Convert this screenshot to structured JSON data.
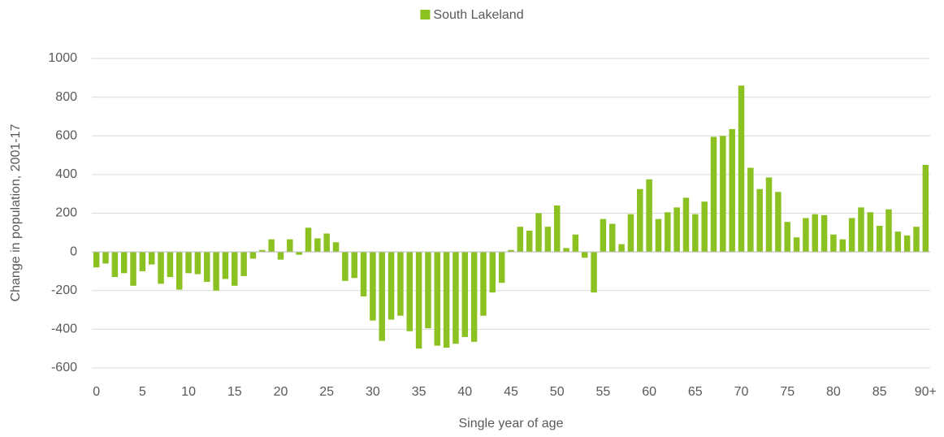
{
  "chart_data": {
    "type": "bar",
    "legend": "top",
    "series": [
      {
        "name": "South Lakeland",
        "color": "#8cc122",
        "values": [
          -80,
          -60,
          -130,
          -110,
          -175,
          -100,
          -65,
          -165,
          -130,
          -195,
          -110,
          -115,
          -155,
          -200,
          -140,
          -175,
          -125,
          -35,
          10,
          65,
          -40,
          65,
          -15,
          125,
          70,
          95,
          50,
          -150,
          -135,
          -230,
          -355,
          -460,
          -350,
          -330,
          -410,
          -500,
          -395,
          -485,
          -495,
          -475,
          -440,
          -465,
          -330,
          -210,
          -160,
          10,
          130,
          110,
          200,
          130,
          240,
          20,
          90,
          -30,
          -210,
          170,
          145,
          40,
          195,
          325,
          375,
          170,
          205,
          230,
          280,
          195,
          260,
          595,
          600,
          635,
          860,
          435,
          325,
          385,
          310,
          155,
          75,
          175,
          195,
          190,
          90,
          65,
          175,
          230,
          205,
          135,
          220,
          105,
          85,
          130,
          450
        ]
      }
    ],
    "categories": [
      "0",
      null,
      null,
      null,
      null,
      "5",
      null,
      null,
      null,
      null,
      "10",
      null,
      null,
      null,
      null,
      "15",
      null,
      null,
      null,
      null,
      "20",
      null,
      null,
      null,
      null,
      "25",
      null,
      null,
      null,
      null,
      "30",
      null,
      null,
      null,
      null,
      "35",
      null,
      null,
      null,
      null,
      "40",
      null,
      null,
      null,
      null,
      "45",
      null,
      null,
      null,
      null,
      "50",
      null,
      null,
      null,
      null,
      "55",
      null,
      null,
      null,
      null,
      "60",
      null,
      null,
      null,
      null,
      "65",
      null,
      null,
      null,
      null,
      "70",
      null,
      null,
      null,
      null,
      "75",
      null,
      null,
      null,
      null,
      "80",
      null,
      null,
      null,
      null,
      "85",
      null,
      null,
      null,
      null,
      "90+"
    ],
    "x_label": "Single year of age",
    "y_label": "Change in population, 2001-17",
    "ylim": [
      -600,
      1000
    ],
    "yticks": [
      -600,
      -400,
      -200,
      0,
      200,
      400,
      600,
      800,
      1000
    ],
    "grid": true
  }
}
